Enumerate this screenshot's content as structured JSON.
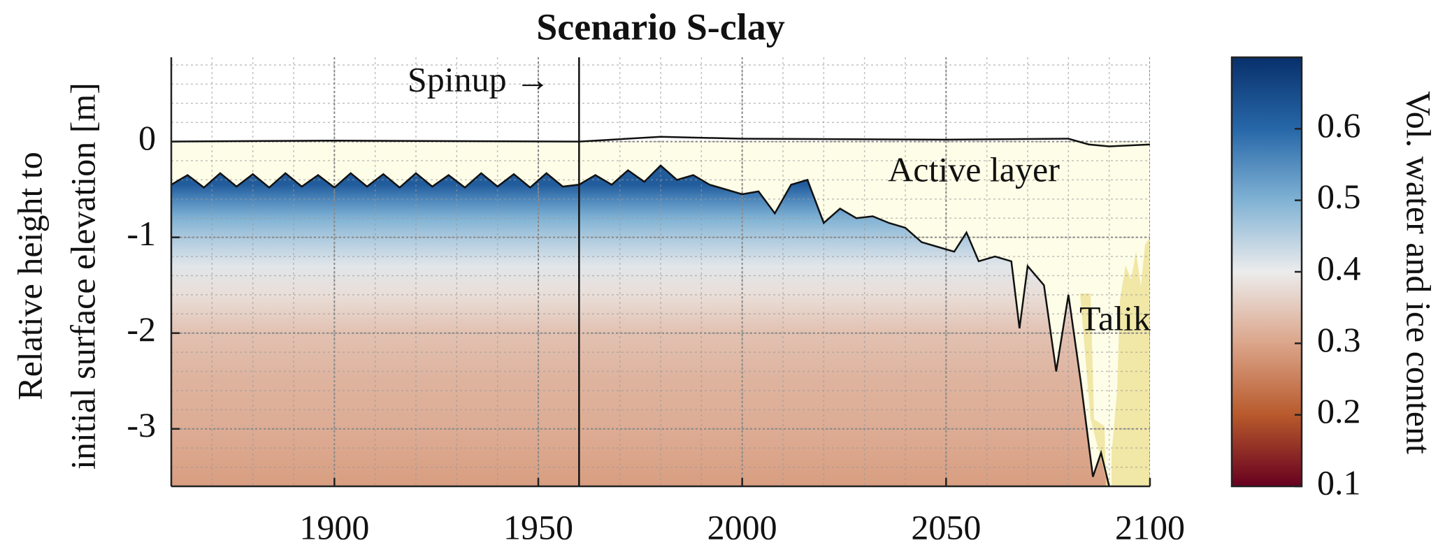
{
  "chart_data": {
    "type": "depth-profile",
    "title": "Scenario S-clay",
    "y_label": [
      "Relative height to",
      "initial surface elevation [m]"
    ],
    "colorbar_label": "Vol. water and ice content",
    "annotations": {
      "spinup": "Spinup →",
      "active_layer": "Active layer",
      "talik": "Talik"
    },
    "xlim": [
      1860,
      2100
    ],
    "xticks": [
      1900,
      1950,
      2000,
      2050,
      2100
    ],
    "ylim": [
      -3.6,
      0.88
    ],
    "yticks": [
      -3,
      -2,
      -1,
      0
    ],
    "grid": true,
    "minor_grid": true,
    "spinup_x": 1960,
    "clim": [
      0.1,
      0.7
    ],
    "cticks": [
      0.1,
      0.2,
      0.3,
      0.4,
      0.5,
      0.6
    ],
    "colorscale": {
      "values": [
        0.1,
        0.2,
        0.3,
        0.4,
        0.5,
        0.6,
        0.7
      ],
      "colors": [
        "#67001f",
        "#b85a2c",
        "#dba58a",
        "#ececec",
        "#80b2d4",
        "#2767a8",
        "#08306b"
      ]
    },
    "profile": {
      "depth": [
        -0.45,
        -0.6,
        -0.8,
        -1.0,
        -1.3,
        -1.6,
        -2.0,
        -2.5,
        -3.0,
        -3.6
      ],
      "values": [
        0.62,
        0.56,
        0.5,
        0.46,
        0.41,
        0.38,
        0.34,
        0.32,
        0.31,
        0.29
      ]
    },
    "surface": {
      "x": [
        1860,
        1900,
        1960,
        1980,
        2000,
        2050,
        2080,
        2085,
        2090,
        2100
      ],
      "values": [
        0,
        0.01,
        0,
        0.05,
        0.03,
        0.02,
        0.03,
        -0.03,
        -0.05,
        -0.03
      ]
    },
    "thaw_line": {
      "x": [
        1860,
        1864,
        1868,
        1872,
        1876,
        1880,
        1884,
        1888,
        1892,
        1896,
        1900,
        1904,
        1908,
        1912,
        1916,
        1920,
        1924,
        1928,
        1932,
        1936,
        1940,
        1944,
        1948,
        1952,
        1956,
        1960,
        1964,
        1968,
        1972,
        1976,
        1980,
        1984,
        1988,
        1992,
        1996,
        2000,
        2004,
        2008,
        2012,
        2016,
        2020,
        2024,
        2028,
        2032,
        2036,
        2040,
        2044,
        2048,
        2052,
        2055,
        2058,
        2062,
        2066,
        2068,
        2070,
        2074,
        2077,
        2080,
        2083,
        2086,
        2088,
        2090
      ],
      "values": [
        -0.45,
        -0.35,
        -0.48,
        -0.33,
        -0.47,
        -0.34,
        -0.48,
        -0.33,
        -0.47,
        -0.35,
        -0.48,
        -0.33,
        -0.47,
        -0.34,
        -0.48,
        -0.33,
        -0.47,
        -0.35,
        -0.48,
        -0.33,
        -0.47,
        -0.34,
        -0.48,
        -0.33,
        -0.47,
        -0.45,
        -0.35,
        -0.45,
        -0.3,
        -0.42,
        -0.25,
        -0.4,
        -0.35,
        -0.45,
        -0.5,
        -0.55,
        -0.52,
        -0.75,
        -0.45,
        -0.4,
        -0.85,
        -0.7,
        -0.8,
        -0.78,
        -0.85,
        -0.9,
        -1.05,
        -1.1,
        -1.15,
        -0.95,
        -1.25,
        -1.2,
        -1.25,
        -1.95,
        -1.3,
        -1.5,
        -2.4,
        -1.6,
        -2.5,
        -3.5,
        -3.25,
        -3.6
      ]
    }
  }
}
